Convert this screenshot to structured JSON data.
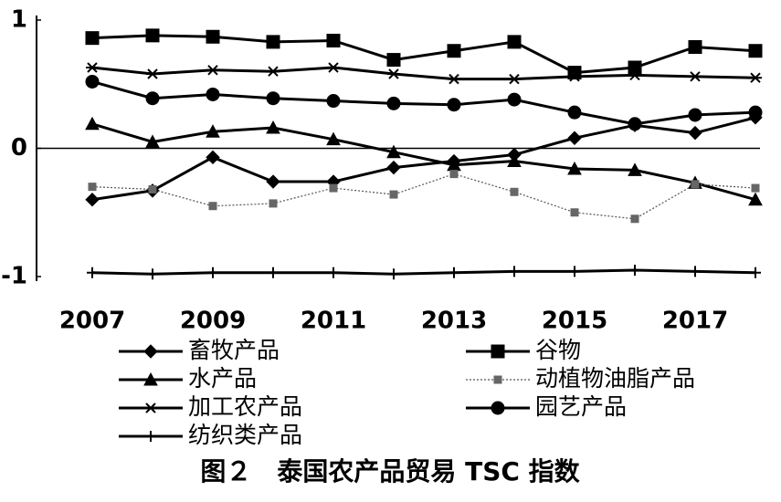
{
  "chart_data": {
    "type": "line",
    "title": "图２　泰国农产品贸易 TSC 指数",
    "x": [
      2007,
      2008,
      2009,
      2010,
      2011,
      2012,
      2013,
      2014,
      2015,
      2016,
      2017,
      2018
    ],
    "xlim": [
      2006,
      2018
    ],
    "xticks": [
      2007,
      2009,
      2011,
      2013,
      2015,
      2017
    ],
    "ylim": [
      -1,
      1
    ],
    "yticks": [
      -1,
      0,
      1
    ],
    "series": [
      {
        "name": "畜牧产品",
        "color": "#000000",
        "marker": "diamond",
        "line": "solid",
        "values": [
          -0.4,
          -0.33,
          -0.07,
          -0.26,
          -0.26,
          -0.15,
          -0.1,
          -0.05,
          0.08,
          0.18,
          0.12,
          0.24
        ]
      },
      {
        "name": "谷物",
        "color": "#000000",
        "marker": "square",
        "line": "solid",
        "values": [
          0.86,
          0.88,
          0.87,
          0.83,
          0.84,
          0.69,
          0.76,
          0.83,
          0.59,
          0.63,
          0.79,
          0.76
        ]
      },
      {
        "name": "水产品",
        "color": "#000000",
        "marker": "triangle",
        "line": "solid",
        "values": [
          0.19,
          0.05,
          0.13,
          0.16,
          0.07,
          -0.03,
          -0.13,
          -0.1,
          -0.16,
          -0.17,
          -0.27,
          -0.4
        ]
      },
      {
        "name": "动植物油脂产品",
        "color": "#000000",
        "marker": "smallsquare",
        "line": "dotted",
        "values": [
          -0.3,
          -0.32,
          -0.45,
          -0.43,
          -0.31,
          -0.36,
          -0.2,
          -0.34,
          -0.5,
          -0.55,
          -0.28,
          -0.31
        ]
      },
      {
        "name": "加工农产品",
        "color": "#000000",
        "marker": "star",
        "line": "solid",
        "values": [
          0.63,
          0.58,
          0.61,
          0.6,
          0.63,
          0.58,
          0.54,
          0.54,
          0.56,
          0.57,
          0.56,
          0.55
        ]
      },
      {
        "name": "园艺产品",
        "color": "#000000",
        "marker": "circle",
        "line": "solid",
        "values": [
          0.52,
          0.39,
          0.42,
          0.39,
          0.37,
          0.35,
          0.34,
          0.38,
          0.28,
          0.19,
          0.26,
          0.28
        ]
      },
      {
        "name": "纺织类产品",
        "color": "#000000",
        "marker": "plus",
        "line": "solid",
        "values": [
          -0.97,
          -0.98,
          -0.97,
          -0.97,
          -0.97,
          -0.98,
          -0.97,
          -0.96,
          -0.96,
          -0.95,
          -0.96,
          -0.97
        ]
      }
    ]
  }
}
